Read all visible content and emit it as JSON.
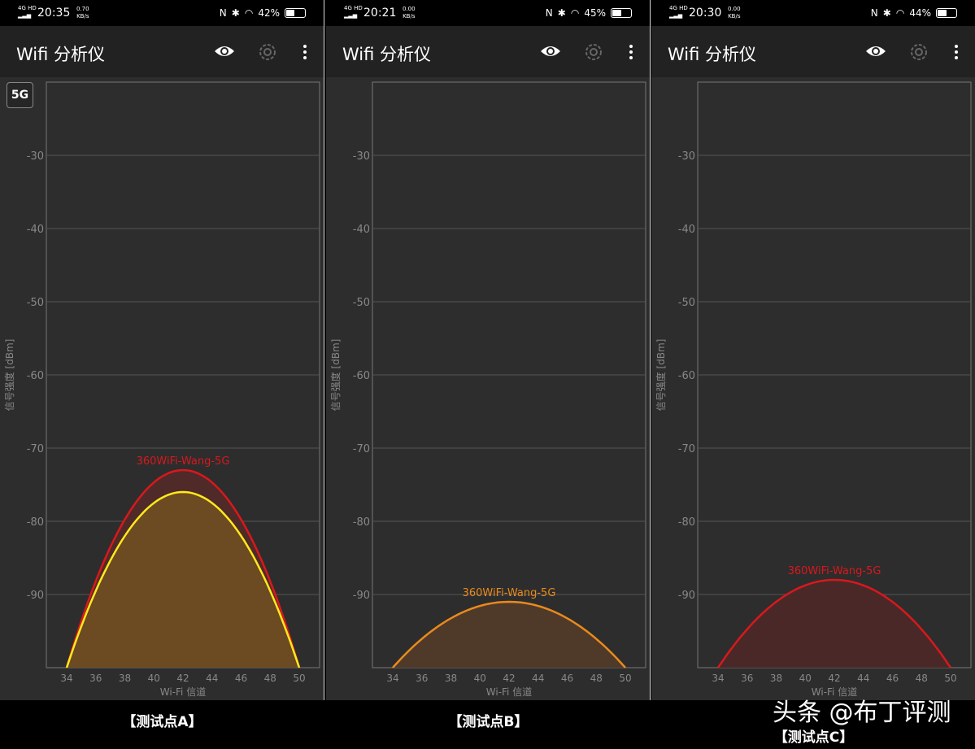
{
  "app_title": "Wifi 分析仪",
  "band_button": "5G",
  "icons": {
    "eye": "eye-icon",
    "gear": "gear-icon",
    "more": "more-vert-icon"
  },
  "watermark": "头条 @布丁评测",
  "panels": [
    {
      "status": {
        "network": "4G HD",
        "time": "20:35",
        "speed": "0.70",
        "speed_unit": "KB/s",
        "battery": "42%",
        "battery_level": 0.42
      },
      "show_band_button": true,
      "caption": "【测试点A】",
      "chart_data": {
        "type": "area",
        "xlabel": "Wi-Fi 信道",
        "ylabel": "信号强度 [dBm]",
        "xlim": [
          32.6,
          51.4
        ],
        "ylim": [
          -100,
          -20
        ],
        "xticks": [
          34,
          36,
          38,
          40,
          42,
          44,
          46,
          48,
          50
        ],
        "yticks": [
          -30,
          -40,
          -50,
          -60,
          -70,
          -80,
          -90
        ],
        "grid": true,
        "series": [
          {
            "label": "360WiFi-Wang-5G",
            "channel_start": 34,
            "channel_center": 42,
            "channel_end": 50,
            "peak_dbm": -73,
            "color": "#d9181c",
            "fill": "#4f2a28"
          },
          {
            "channel_start": 34,
            "channel_center": 42,
            "channel_end": 50,
            "peak_dbm": -76,
            "color": "#ffea1a",
            "fill": "#6c4a22"
          }
        ]
      }
    },
    {
      "status": {
        "network": "4G HD",
        "time": "20:21",
        "speed": "0.00",
        "speed_unit": "KB/s",
        "battery": "45%",
        "battery_level": 0.45
      },
      "show_band_button": false,
      "caption": "【测试点B】",
      "chart_data": {
        "type": "area",
        "xlabel": "Wi-Fi 信道",
        "ylabel": "信号强度 [dBm]",
        "xlim": [
          32.6,
          51.4
        ],
        "ylim": [
          -100,
          -20
        ],
        "xticks": [
          34,
          36,
          38,
          40,
          42,
          44,
          46,
          48,
          50
        ],
        "yticks": [
          -30,
          -40,
          -50,
          -60,
          -70,
          -80,
          -90
        ],
        "grid": true,
        "series": [
          {
            "label": "360WiFi-Wang-5G",
            "channel_start": 34,
            "channel_center": 42,
            "channel_end": 50,
            "peak_dbm": -91,
            "color": "#ea8a1c",
            "fill": "#4f3a2a"
          }
        ]
      }
    },
    {
      "status": {
        "network": "4G HD",
        "time": "20:30",
        "speed": "0.00",
        "speed_unit": "KB/s",
        "battery": "44%",
        "battery_level": 0.44
      },
      "show_band_button": false,
      "caption": "【测试点C】",
      "chart_data": {
        "type": "area",
        "xlabel": "Wi-Fi 信道",
        "ylabel": "信号强度 [dBm]",
        "xlim": [
          32.6,
          51.4
        ],
        "ylim": [
          -100,
          -20
        ],
        "xticks": [
          34,
          36,
          38,
          40,
          42,
          44,
          46,
          48,
          50
        ],
        "yticks": [
          -30,
          -40,
          -50,
          -60,
          -70,
          -80,
          -90
        ],
        "grid": true,
        "series": [
          {
            "label": "360WiFi-Wang-5G",
            "channel_start": 34,
            "channel_center": 42,
            "channel_end": 50,
            "peak_dbm": -88,
            "color": "#d9181c",
            "fill": "#4a2828"
          }
        ]
      }
    }
  ]
}
